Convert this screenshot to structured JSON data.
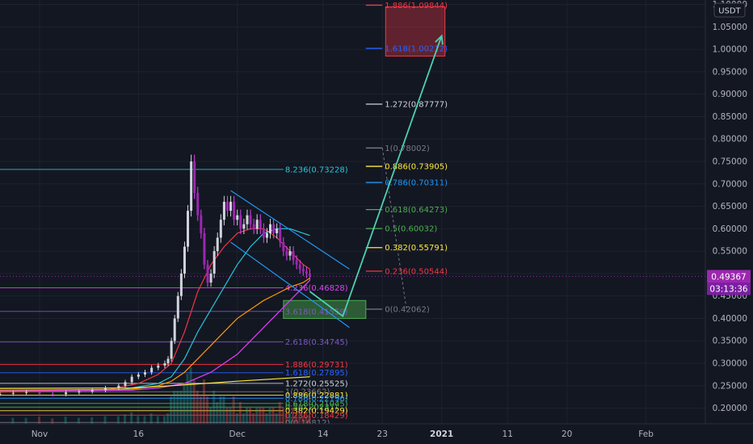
{
  "chart_data": {
    "type": "line",
    "currency": "USDT",
    "y_axis": {
      "ticks": [
        "0.20000",
        "0.25000",
        "0.30000",
        "0.35000",
        "0.40000",
        "0.45000",
        "0.50000",
        "0.55000",
        "0.60000",
        "0.65000",
        "0.70000",
        "0.75000",
        "0.80000",
        "0.85000",
        "0.90000",
        "0.95000",
        "1.00000",
        "1.05000",
        "1.10000"
      ],
      "ylim": [
        0.165,
        1.11
      ]
    },
    "x_axis": {
      "ticks": [
        {
          "label": "Nov",
          "day": 0
        },
        {
          "label": "16",
          "day": 15
        },
        {
          "label": "Dec",
          "day": 30
        },
        {
          "label": "14",
          "day": 43
        },
        {
          "label": "23",
          "day": 52
        },
        {
          "label": "2021",
          "day": 61,
          "bold": true
        },
        {
          "label": "11",
          "day": 71
        },
        {
          "label": "20",
          "day": 80
        },
        {
          "label": "Feb",
          "day": 92
        }
      ],
      "xlim": [
        -6,
        101
      ]
    },
    "last_price": {
      "value": 0.49367,
      "label": "0.49367",
      "countdown": "03:13:36",
      "color": "#9c27b0"
    },
    "upper_fib": [
      {
        "label": "1.886(1.09844)",
        "value": 1.09844,
        "color": "#f23645"
      },
      {
        "label": "1.618(1.00212)",
        "value": 1.00212,
        "color": "#2962ff"
      },
      {
        "label": "1.272(0.87777)",
        "value": 0.87777,
        "color": "#d1d4dc"
      },
      {
        "label": "1(0.78002)",
        "value": 0.78002,
        "color": "#787b86"
      },
      {
        "label": "0.886(0.73905)",
        "value": 0.73905,
        "color": "#ffeb3b"
      },
      {
        "label": "0.786(0.70311)",
        "value": 0.70311,
        "color": "#2196f3"
      },
      {
        "label": "0.618(0.64273)",
        "value": 0.64273,
        "color": "#4caf50"
      },
      {
        "label": "0.5(0.60032)",
        "value": 0.60032,
        "color": "#4caf50"
      },
      {
        "label": "0.382(0.55791)",
        "value": 0.55791,
        "color": "#ffeb3b"
      },
      {
        "label": "0.236(0.50544)",
        "value": 0.50544,
        "color": "#f23645"
      },
      {
        "label": "0(0.42062)",
        "value": 0.42062,
        "color": "#787b86"
      }
    ],
    "lower_fib": [
      {
        "label": "8.236(0.73228)",
        "value": 0.73228,
        "color": "#26c6da"
      },
      {
        "label": "4.236(0.46828)",
        "value": 0.46828,
        "color": "#e040fb"
      },
      {
        "label": "3.618(0.41559)",
        "value": 0.41559,
        "color": "#7e57c2"
      },
      {
        "label": "2.618(0.34745)",
        "value": 0.34745,
        "color": "#7e57c2"
      },
      {
        "label": "1.886(0.29731)",
        "value": 0.29731,
        "color": "#f23645"
      },
      {
        "label": "1.618(0.27895)",
        "value": 0.27895,
        "color": "#2962ff"
      },
      {
        "label": "1.272(0.25525)",
        "value": 0.25525,
        "color": "#d1d4dc"
      },
      {
        "label": "1(0.23662)",
        "value": 0.23662,
        "color": "#787b86"
      },
      {
        "label": "0.886(0.22881)",
        "value": 0.22881,
        "color": "#ffeb3b"
      },
      {
        "label": "0.786(0.22196)",
        "value": 0.22196,
        "color": "#2196f3"
      },
      {
        "label": "0.618(0.21045)",
        "value": 0.21045,
        "color": "#4caf50"
      },
      {
        "label": "0.5(0.20237)",
        "value": 0.20237,
        "color": "#4caf50"
      },
      {
        "label": "0.382(0.19429)",
        "value": 0.19429,
        "color": "#ffeb3b"
      },
      {
        "label": "0.236(0.18429)",
        "value": 0.18429,
        "color": "#f23645"
      },
      {
        "label": "0(0.16812)",
        "value": 0.16812,
        "color": "#787b86"
      }
    ],
    "target_zone": {
      "day_from": 52.5,
      "day_to": 61.5,
      "price_from": 0.985,
      "price_to": 1.095,
      "color": "#f23645"
    },
    "buy_zone": {
      "day_from": 37,
      "day_to": 49.5,
      "price_from": 0.4,
      "price_to": 0.44,
      "color": "#4caf50"
    },
    "projection_arrow": {
      "points": [
        [
          41,
          0.46
        ],
        [
          46,
          0.405
        ],
        [
          61,
          1.03
        ]
      ],
      "color": "#4dd0b0"
    },
    "channel": {
      "upper": [
        [
          29,
          0.685
        ],
        [
          47,
          0.51
        ]
      ],
      "lower": [
        [
          29,
          0.57
        ],
        [
          47,
          0.38
        ]
      ],
      "color": "#2196f3"
    },
    "price": [
      [
        -6,
        0.232
      ],
      [
        -4,
        0.234
      ],
      [
        -2,
        0.236
      ],
      [
        0,
        0.232
      ],
      [
        2,
        0.231
      ],
      [
        4,
        0.235
      ],
      [
        6,
        0.237
      ],
      [
        8,
        0.24
      ],
      [
        10,
        0.245
      ],
      [
        12,
        0.25
      ],
      [
        13,
        0.258
      ],
      [
        14,
        0.27
      ],
      [
        15,
        0.275
      ],
      [
        16,
        0.28
      ],
      [
        17,
        0.29
      ],
      [
        18,
        0.295
      ],
      [
        19,
        0.3
      ],
      [
        19.5,
        0.31
      ],
      [
        20,
        0.35
      ],
      [
        20.5,
        0.4
      ],
      [
        21,
        0.45
      ],
      [
        21.5,
        0.5
      ],
      [
        22,
        0.56
      ],
      [
        22.5,
        0.64
      ],
      [
        23,
        0.75
      ],
      [
        23.5,
        0.68
      ],
      [
        24,
        0.63
      ],
      [
        24.5,
        0.59
      ],
      [
        25,
        0.52
      ],
      [
        25.5,
        0.48
      ],
      [
        26,
        0.5
      ],
      [
        26.5,
        0.55
      ],
      [
        27,
        0.58
      ],
      [
        27.5,
        0.62
      ],
      [
        28,
        0.66
      ],
      [
        28.5,
        0.64
      ],
      [
        29,
        0.66
      ],
      [
        29.5,
        0.62
      ],
      [
        30,
        0.63
      ],
      [
        30.5,
        0.6
      ],
      [
        31,
        0.61
      ],
      [
        31.5,
        0.63
      ],
      [
        32,
        0.61
      ],
      [
        32.5,
        0.6
      ],
      [
        33,
        0.62
      ],
      [
        33.5,
        0.6
      ],
      [
        34,
        0.58
      ],
      [
        34.5,
        0.59
      ],
      [
        35,
        0.61
      ],
      [
        35.5,
        0.59
      ],
      [
        36,
        0.6
      ],
      [
        36.5,
        0.57
      ],
      [
        37,
        0.55
      ],
      [
        37.5,
        0.54
      ],
      [
        38,
        0.55
      ],
      [
        38.5,
        0.53
      ],
      [
        39,
        0.52
      ],
      [
        39.5,
        0.51
      ],
      [
        40,
        0.505
      ],
      [
        40.5,
        0.5
      ],
      [
        41,
        0.494
      ]
    ],
    "ma_fast": [
      [
        -6,
        0.236
      ],
      [
        10,
        0.24
      ],
      [
        15,
        0.255
      ],
      [
        18,
        0.275
      ],
      [
        20,
        0.3
      ],
      [
        22,
        0.37
      ],
      [
        24,
        0.46
      ],
      [
        26,
        0.52
      ],
      [
        28,
        0.56
      ],
      [
        30,
        0.59
      ],
      [
        32,
        0.6
      ],
      [
        34,
        0.6
      ],
      [
        36,
        0.58
      ],
      [
        38,
        0.55
      ],
      [
        40,
        0.52
      ],
      [
        41,
        0.51
      ]
    ],
    "ma_mid": [
      [
        -6,
        0.238
      ],
      [
        12,
        0.24
      ],
      [
        18,
        0.255
      ],
      [
        20,
        0.27
      ],
      [
        22,
        0.31
      ],
      [
        24,
        0.37
      ],
      [
        26,
        0.42
      ],
      [
        28,
        0.47
      ],
      [
        30,
        0.52
      ],
      [
        32,
        0.56
      ],
      [
        34,
        0.59
      ],
      [
        36,
        0.6
      ],
      [
        38,
        0.6
      ],
      [
        40,
        0.59
      ],
      [
        41,
        0.585
      ]
    ],
    "ma_slow": [
      [
        -6,
        0.24
      ],
      [
        14,
        0.242
      ],
      [
        18,
        0.25
      ],
      [
        20,
        0.26
      ],
      [
        22,
        0.28
      ],
      [
        24,
        0.31
      ],
      [
        26,
        0.34
      ],
      [
        28,
        0.37
      ],
      [
        30,
        0.4
      ],
      [
        32,
        0.42
      ],
      [
        34,
        0.44
      ],
      [
        36,
        0.455
      ],
      [
        38,
        0.47
      ],
      [
        40,
        0.48
      ],
      [
        41,
        0.49
      ]
    ],
    "ma_long": [
      [
        -6,
        0.238
      ],
      [
        14,
        0.24
      ],
      [
        18,
        0.245
      ],
      [
        22,
        0.255
      ],
      [
        26,
        0.28
      ],
      [
        30,
        0.32
      ],
      [
        34,
        0.38
      ],
      [
        36,
        0.41
      ],
      [
        38,
        0.44
      ],
      [
        40,
        0.47
      ],
      [
        41,
        0.485
      ]
    ]
  }
}
